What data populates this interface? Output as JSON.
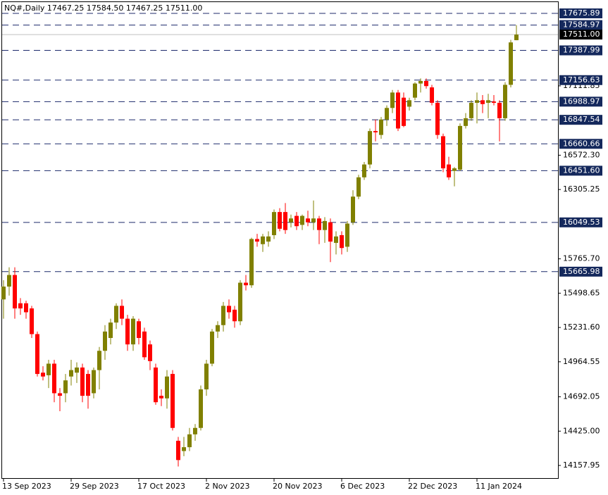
{
  "chart_data": {
    "type": "candlestick",
    "title": "NQ#,Daily  17467.25 17584.50 17467.25 17511.00",
    "up_color": "#808000",
    "down_color": "#ff0000",
    "ylim": [
      14054,
      17780
    ],
    "yticks": [
      {
        "value": 14157.95,
        "label": "14157.95"
      },
      {
        "value": 14425,
        "label": "14425.00"
      },
      14692.05,
      14964.55,
      {
        "value": 15231.6,
        "label": "15231.60"
      },
      15498.65,
      {
        "value": 15765.7,
        "label": "15765.70"
      },
      16305.25,
      {
        "value": 16572.3,
        "label": "16572.30"
      },
      17111.85
    ],
    "xticks": [
      {
        "value": 0,
        "label": "13 Sep 2023"
      },
      {
        "value": 12,
        "label": "29 Sep 2023"
      },
      {
        "value": 24,
        "label": "17 Oct 2023"
      },
      {
        "value": 36,
        "label": "2 Nov 2023"
      },
      {
        "value": 48,
        "label": "20 Nov 2023"
      },
      {
        "value": 60,
        "label": "6 Dec 2023"
      },
      {
        "value": 72,
        "label": "22 Dec 2023"
      },
      {
        "value": 84,
        "label": "11 Jan 2024"
      }
    ],
    "levels": [
      17675.89,
      17584.97,
      17387.99,
      17156.63,
      16988.97,
      16847.54,
      16660.66,
      {
        "value": 16451.6,
        "label": "16451.60"
      },
      16049.53,
      15665.98
    ],
    "last_price": {
      "value": 17511,
      "label": "17511.00"
    },
    "candles": [
      [
        15450,
        15600,
        15300,
        15550
      ],
      [
        15550,
        15700,
        15480,
        15640
      ],
      [
        15640,
        15700,
        15300,
        15380
      ],
      [
        15420,
        15460,
        15330,
        15380
      ],
      [
        15420,
        15440,
        15300,
        15350
      ],
      [
        15380,
        15400,
        15150,
        15180
      ],
      [
        15180,
        15200,
        14850,
        14870
      ],
      [
        14880,
        14930,
        14820,
        14850
      ],
      [
        14860,
        14980,
        14760,
        14950
      ],
      [
        14950,
        14980,
        14650,
        14720
      ],
      [
        14720,
        14760,
        14580,
        14700
      ],
      [
        14720,
        14870,
        14650,
        14820
      ],
      [
        14850,
        14980,
        14780,
        14900
      ],
      [
        14880,
        14960,
        14800,
        14920
      ],
      [
        14920,
        14950,
        14650,
        14700
      ],
      [
        14870,
        14900,
        14600,
        14700
      ],
      [
        14720,
        14920,
        14680,
        14900
      ],
      [
        14900,
        15080,
        14750,
        15050
      ],
      [
        15050,
        15250,
        14980,
        15200
      ],
      [
        15150,
        15300,
        15100,
        15270
      ],
      [
        15270,
        15420,
        15220,
        15400
      ],
      [
        15400,
        15450,
        15250,
        15300
      ],
      [
        15300,
        15330,
        15050,
        15100
      ],
      [
        15100,
        15320,
        15050,
        15300
      ],
      [
        15280,
        15300,
        15100,
        15150
      ],
      [
        15200,
        15230,
        14980,
        15000
      ],
      [
        15100,
        15130,
        14900,
        14970
      ],
      [
        14920,
        14950,
        14630,
        14650
      ],
      [
        14700,
        14750,
        14620,
        14680
      ],
      [
        14680,
        14900,
        14600,
        14850
      ],
      [
        14870,
        14900,
        14430,
        14450
      ],
      [
        14350,
        14380,
        14150,
        14200
      ],
      [
        14270,
        14380,
        14230,
        14300
      ],
      [
        14300,
        14450,
        14270,
        14400
      ],
      [
        14400,
        14480,
        14350,
        14450
      ],
      [
        14450,
        14780,
        14430,
        14750
      ],
      [
        14750,
        14980,
        14700,
        14950
      ],
      [
        14950,
        15220,
        14930,
        15200
      ],
      [
        15200,
        15280,
        15150,
        15250
      ],
      [
        15250,
        15430,
        15200,
        15400
      ],
      [
        15400,
        15450,
        15300,
        15350
      ],
      [
        15370,
        15400,
        15230,
        15280
      ],
      [
        15280,
        15600,
        15250,
        15580
      ],
      [
        15580,
        15640,
        15520,
        15560
      ],
      [
        15560,
        15930,
        15540,
        15920
      ],
      [
        15920,
        15960,
        15860,
        15900
      ],
      [
        15880,
        15960,
        15820,
        15940
      ],
      [
        15900,
        15980,
        15860,
        15940
      ],
      [
        15950,
        16150,
        15920,
        16130
      ],
      [
        16130,
        16160,
        15980,
        16000
      ],
      [
        16130,
        16200,
        15960,
        15990
      ],
      [
        16050,
        16110,
        16010,
        16080
      ],
      [
        16100,
        16130,
        15990,
        16020
      ],
      [
        16030,
        16110,
        15990,
        16100
      ],
      [
        16080,
        16140,
        16020,
        16050
      ],
      [
        16050,
        16220,
        15990,
        16080
      ],
      [
        16080,
        16100,
        15880,
        15990
      ],
      [
        15990,
        16090,
        15890,
        16060
      ],
      [
        16050,
        16080,
        15740,
        15900
      ],
      [
        15890,
        15980,
        15800,
        15940
      ],
      [
        15950,
        15980,
        15800,
        15850
      ],
      [
        15860,
        16060,
        15820,
        16040
      ],
      [
        16050,
        16300,
        16030,
        16250
      ],
      [
        16250,
        16420,
        16230,
        16400
      ],
      [
        16400,
        16520,
        16380,
        16500
      ],
      [
        16500,
        16780,
        16470,
        16760
      ],
      [
        16760,
        16850,
        16680,
        16750
      ],
      [
        16730,
        16870,
        16700,
        16850
      ],
      [
        16850,
        16960,
        16800,
        16940
      ],
      [
        16940,
        17080,
        16900,
        17060
      ],
      [
        17060,
        17080,
        16760,
        16780
      ],
      [
        17020,
        17060,
        16790,
        16800
      ],
      [
        16950,
        17020,
        16920,
        17000
      ],
      [
        17020,
        17140,
        17000,
        17130
      ],
      [
        17130,
        17170,
        17060,
        17150
      ],
      [
        17150,
        17170,
        17090,
        17110
      ],
      [
        17100,
        17120,
        16960,
        16980
      ],
      [
        16980,
        17000,
        16700,
        16730
      ],
      [
        16720,
        16740,
        16440,
        16470
      ],
      [
        16500,
        16560,
        16380,
        16400
      ],
      [
        16450,
        16480,
        16330,
        16470
      ],
      [
        16460,
        16820,
        16450,
        16800
      ],
      [
        16800,
        16900,
        16780,
        16860
      ],
      [
        16860,
        17000,
        16840,
        16980
      ],
      [
        16980,
        17060,
        16820,
        17000
      ],
      [
        17000,
        17040,
        16900,
        16970
      ],
      [
        16980,
        17050,
        16860,
        17000
      ],
      [
        16990,
        17040,
        16960,
        16980
      ],
      [
        16980,
        17000,
        16680,
        16860
      ],
      [
        16860,
        17140,
        16840,
        17120
      ],
      [
        17120,
        17470,
        17100,
        17450
      ],
      [
        17467.25,
        17584.5,
        17467.25,
        17511
      ]
    ]
  }
}
